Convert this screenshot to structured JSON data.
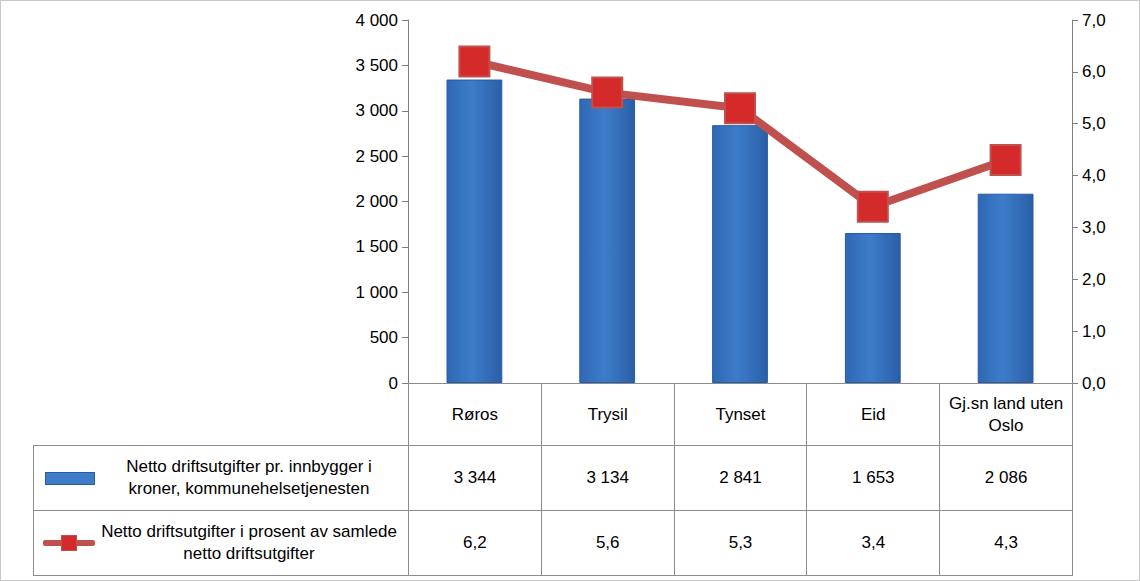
{
  "chart_data": {
    "type": "bar",
    "categories": [
      "Røros",
      "Trysil",
      "Tynset",
      "Eid",
      "Gj.sn land uten Oslo"
    ],
    "series": [
      {
        "name": "Netto driftsutgifter pr. innbygger i kroner, kommunehelsetjenesten",
        "type": "bar",
        "color": "#3d7cc9",
        "values": [
          3344,
          3134,
          2841,
          1653,
          2086
        ],
        "value_labels": [
          "3 344",
          "3 134",
          "2 841",
          "1 653",
          "2 086"
        ]
      },
      {
        "name": "Netto driftsutgifter i prosent av samlede netto driftsutgifter",
        "type": "line",
        "axis": "y2",
        "color": "#c0504d",
        "marker": "square",
        "values": [
          6.2,
          5.6,
          5.3,
          3.4,
          4.3
        ],
        "value_labels": [
          "6,2",
          "5,6",
          "5,3",
          "3,4",
          "4,3"
        ]
      }
    ],
    "ylim": [
      0,
      4000
    ],
    "yticks": [
      0,
      500,
      {
        "value": 1000,
        "label": "1 000"
      },
      {
        "value": 1500,
        "label": "1 500"
      },
      {
        "value": 2000,
        "label": "2 000"
      },
      {
        "value": 2500,
        "label": "2 500"
      },
      {
        "value": 3000,
        "label": "3 000"
      },
      {
        "value": 3500,
        "label": "3 500"
      },
      {
        "value": 4000,
        "label": "4 000"
      }
    ],
    "y2lim": [
      0,
      7
    ],
    "y2ticks": [
      {
        "value": 0,
        "label": "0,0"
      },
      {
        "value": 1,
        "label": "1,0"
      },
      {
        "value": 2,
        "label": "2,0"
      },
      {
        "value": 3,
        "label": "3,0"
      },
      {
        "value": 4,
        "label": "4,0"
      },
      {
        "value": 5,
        "label": "5,0"
      },
      {
        "value": 6,
        "label": "6,0"
      },
      {
        "value": 7,
        "label": "7,0"
      }
    ],
    "grid": false
  }
}
